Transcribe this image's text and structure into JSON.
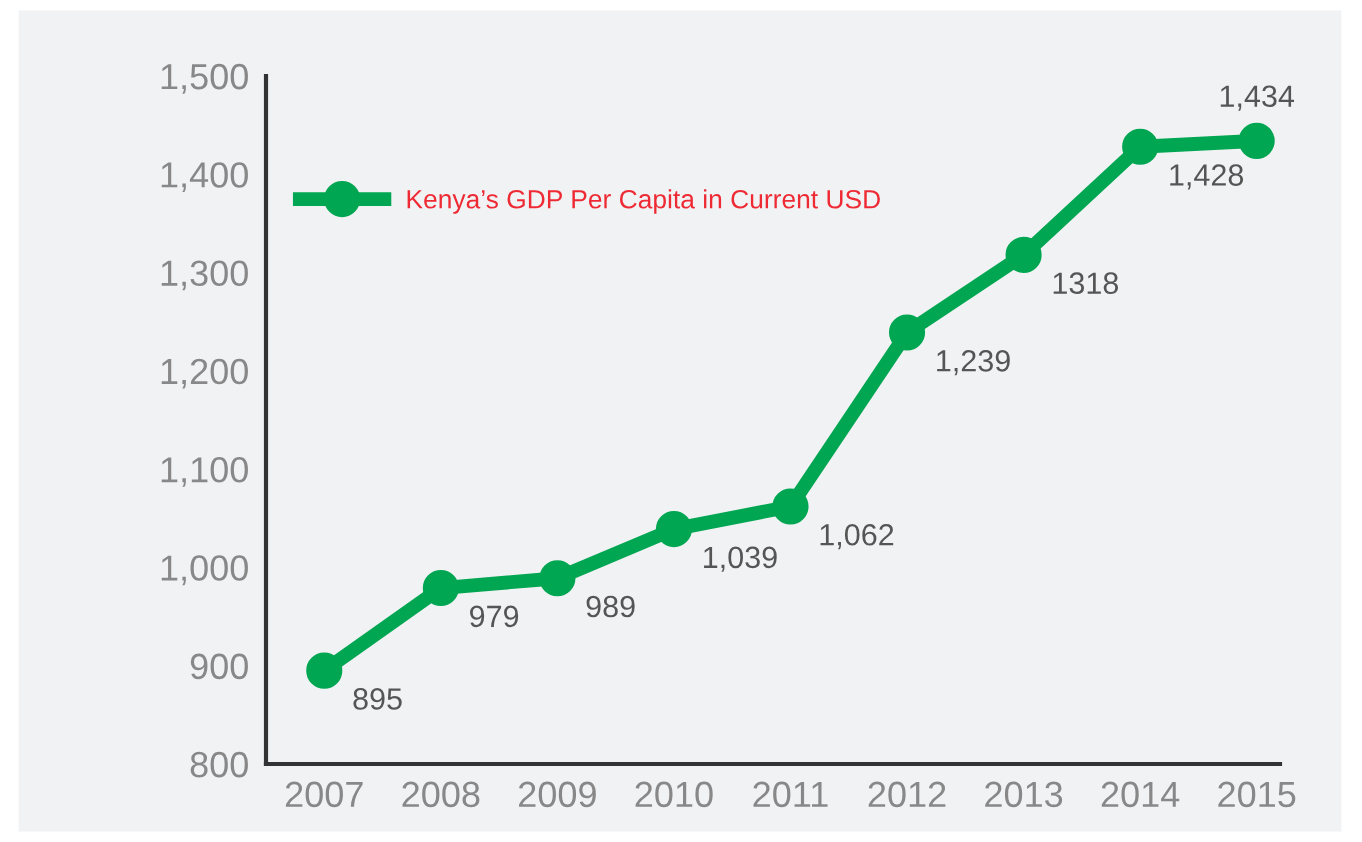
{
  "chart_data": {
    "type": "line",
    "x": [
      2007,
      2008,
      2009,
      2010,
      2011,
      2012,
      2013,
      2014,
      2015
    ],
    "series": [
      {
        "name": "Kenya’s GDP Per Capita in Current USD",
        "color": "#00a651",
        "values": [
          895,
          979,
          989,
          1039,
          1062,
          1239,
          1318,
          1428,
          1434
        ],
        "value_labels": [
          "895",
          "979",
          "989",
          "1,039",
          "1,062",
          "1,239",
          "1318",
          "1,428",
          "1,434"
        ]
      }
    ],
    "xlim": [
      2006.5,
      2015.2
    ],
    "xticks": [
      2007,
      2008,
      2009,
      2010,
      2011,
      2012,
      2013,
      2014,
      2015
    ],
    "ylim": [
      800,
      1500
    ],
    "yticks": [
      {
        "value": 800,
        "label": "800"
      },
      {
        "value": 900,
        "label": "900"
      },
      {
        "value": 1000,
        "label": "1,000"
      },
      {
        "value": 1100,
        "label": "1,100"
      },
      {
        "value": 1200,
        "label": "1,200"
      },
      {
        "value": 1300,
        "label": "1,300"
      },
      {
        "value": 1400,
        "label": "1,400"
      },
      {
        "value": 1500,
        "label": "1,500"
      }
    ],
    "marker": "circle",
    "line_style": "solid",
    "legend": "top left",
    "grid": false
  }
}
